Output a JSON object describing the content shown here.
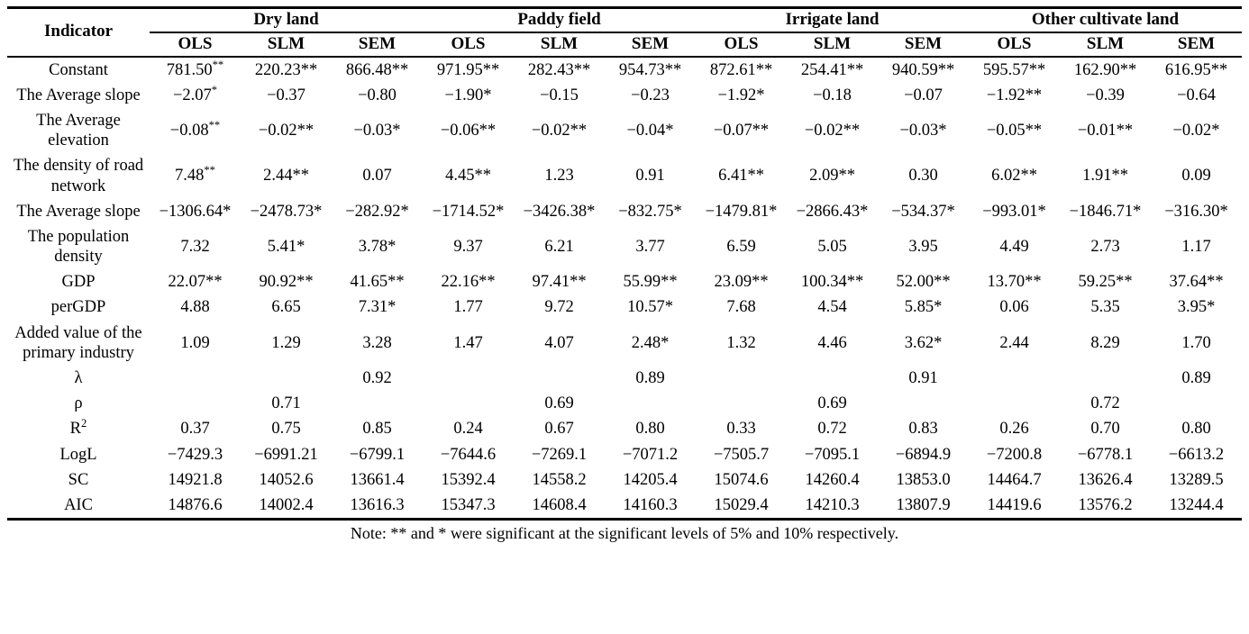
{
  "table": {
    "indicator_header": "Indicator",
    "groups": [
      {
        "label": "Dry land"
      },
      {
        "label": "Paddy field"
      },
      {
        "label": "Irrigate land"
      },
      {
        "label": "Other cultivate land"
      }
    ],
    "model_headers": [
      "OLS",
      "SLM",
      "SEM"
    ],
    "rows": [
      {
        "label": "Constant",
        "values": [
          "781.50^**",
          "220.23**",
          "866.48**",
          "971.95**",
          "282.43**",
          "954.73**",
          "872.61**",
          "254.41**",
          "940.59**",
          "595.57**",
          "162.90**",
          "616.95**"
        ]
      },
      {
        "label": "The Average slope",
        "values": [
          "−2.07^*",
          "−0.37",
          "−0.80",
          "−1.90*",
          "−0.15",
          "−0.23",
          "−1.92*",
          "−0.18",
          "−0.07",
          "−1.92**",
          "−0.39",
          "−0.64"
        ]
      },
      {
        "label": "The Average elevation",
        "values": [
          "−0.08^**",
          "−0.02**",
          "−0.03*",
          "−0.06**",
          "−0.02**",
          "−0.04*",
          "−0.07**",
          "−0.02**",
          "−0.03*",
          "−0.05**",
          "−0.01**",
          "−0.02*"
        ]
      },
      {
        "label": "The density of road network",
        "values": [
          "7.48^**",
          "2.44**",
          "0.07",
          "4.45**",
          "1.23",
          "0.91",
          "6.41**",
          "2.09**",
          "0.30",
          "6.02**",
          "1.91**",
          "0.09"
        ]
      },
      {
        "label": "The Average slope",
        "values": [
          "−1306.64*",
          "−2478.73*",
          "−282.92*",
          "−1714.52*",
          "−3426.38*",
          "−832.75*",
          "−1479.81*",
          "−2866.43*",
          "−534.37*",
          "−993.01*",
          "−1846.71*",
          "−316.30*"
        ]
      },
      {
        "label": "The population density",
        "values": [
          "7.32",
          "5.41*",
          "3.78*",
          "9.37",
          "6.21",
          "3.77",
          "6.59",
          "5.05",
          "3.95",
          "4.49",
          "2.73",
          "1.17"
        ]
      },
      {
        "label": "GDP",
        "values": [
          "22.07**",
          "90.92**",
          "41.65**",
          "22.16**",
          "97.41**",
          "55.99**",
          "23.09**",
          "100.34**",
          "52.00**",
          "13.70**",
          "59.25**",
          "37.64**"
        ]
      },
      {
        "label": "perGDP",
        "values": [
          "4.88",
          "6.65",
          "7.31*",
          "1.77",
          "9.72",
          "10.57*",
          "7.68",
          "4.54",
          "5.85*",
          "0.06",
          "5.35",
          "3.95*"
        ]
      },
      {
        "label": "Added value of the primary industry",
        "values": [
          "1.09",
          "1.29",
          "3.28",
          "1.47",
          "4.07",
          "2.48*",
          "1.32",
          "4.46",
          "3.62*",
          "2.44",
          "8.29",
          "1.70"
        ]
      },
      {
        "label": "λ",
        "values": [
          "",
          "",
          "0.92",
          "",
          "",
          "0.89",
          "",
          "",
          "0.91",
          "",
          "",
          "0.89"
        ]
      },
      {
        "label": "ρ",
        "values": [
          "",
          "0.71",
          "",
          "",
          "0.69",
          "",
          "",
          "0.69",
          "",
          "",
          "0.72",
          ""
        ]
      },
      {
        "label": "R^2",
        "values": [
          "0.37",
          "0.75",
          "0.85",
          "0.24",
          "0.67",
          "0.80",
          "0.33",
          "0.72",
          "0.83",
          "0.26",
          "0.70",
          "0.80"
        ]
      },
      {
        "label": "LogL",
        "values": [
          "−7429.3",
          "−6991.21",
          "−6799.1",
          "−7644.6",
          "−7269.1",
          "−7071.2",
          "−7505.7",
          "−7095.1",
          "−6894.9",
          "−7200.8",
          "−6778.1",
          "−6613.2"
        ]
      },
      {
        "label": "SC",
        "values": [
          "14921.8",
          "14052.6",
          "13661.4",
          "15392.4",
          "14558.2",
          "14205.4",
          "15074.6",
          "14260.4",
          "13853.0",
          "14464.7",
          "13626.4",
          "13289.5"
        ]
      },
      {
        "label": "AIC",
        "values": [
          "14876.6",
          "14002.4",
          "13616.3",
          "15347.3",
          "14608.4",
          "14160.3",
          "15029.4",
          "14210.3",
          "13807.9",
          "14419.6",
          "13576.2",
          "13244.4"
        ]
      }
    ],
    "note": "Note: ** and * were significant at the significant levels of 5% and 10% respectively."
  }
}
